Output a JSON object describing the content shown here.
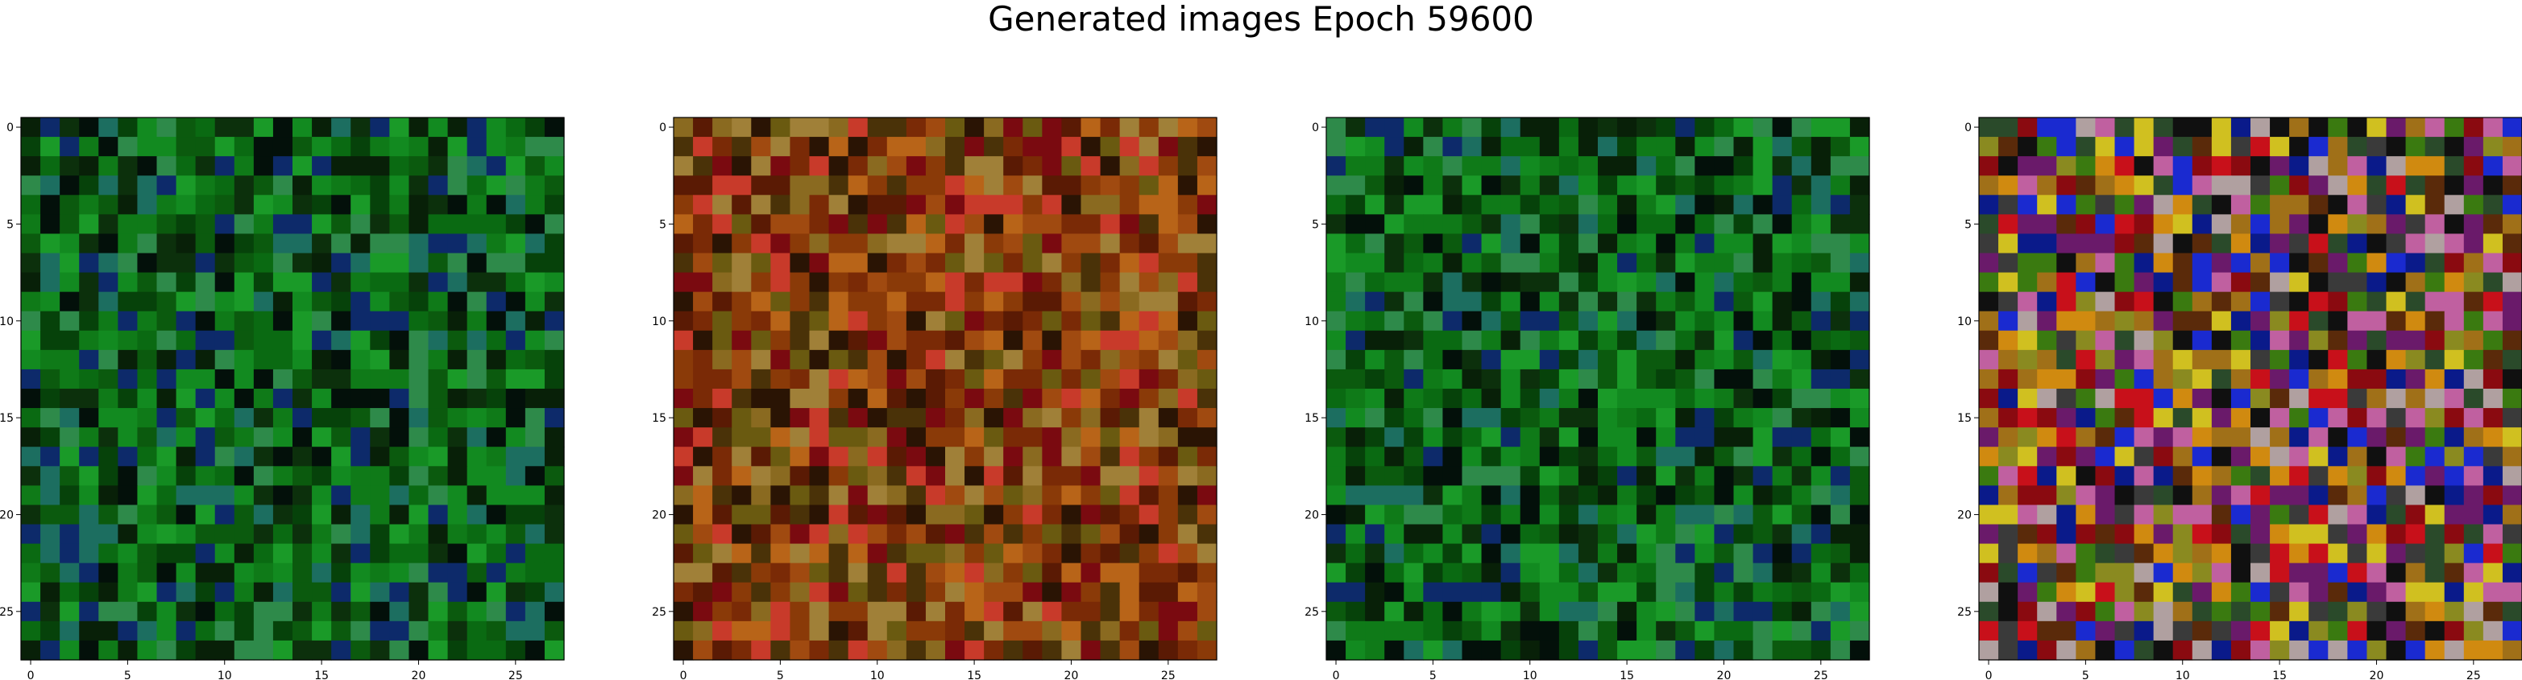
{
  "figure": {
    "title": "Generated images Epoch 59600"
  },
  "chart_data": [
    {
      "type": "heatmap",
      "title": "",
      "grid_size": 28,
      "palette": "green",
      "xticks": [
        0,
        5,
        10,
        15,
        20,
        25
      ],
      "yticks": [
        0,
        5,
        10,
        15,
        20,
        25
      ],
      "xlim": [
        -0.5,
        27.5
      ],
      "ylim": [
        27.5,
        -0.5
      ],
      "grid": false
    },
    {
      "type": "heatmap",
      "title": "",
      "grid_size": 28,
      "palette": "orange-brown",
      "xticks": [
        0,
        5,
        10,
        15,
        20,
        25
      ],
      "yticks": [
        0,
        5,
        10,
        15,
        20,
        25
      ],
      "xlim": [
        -0.5,
        27.5
      ],
      "ylim": [
        27.5,
        -0.5
      ],
      "grid": false
    },
    {
      "type": "heatmap",
      "title": "",
      "grid_size": 28,
      "palette": "green",
      "xticks": [
        0,
        5,
        10,
        15,
        20,
        25
      ],
      "yticks": [
        0,
        5,
        10,
        15,
        20,
        25
      ],
      "xlim": [
        -0.5,
        27.5
      ],
      "ylim": [
        27.5,
        -0.5
      ],
      "grid": false
    },
    {
      "type": "heatmap",
      "title": "",
      "grid_size": 28,
      "palette": "multicolor",
      "xticks": [
        0,
        5,
        10,
        15,
        20,
        25
      ],
      "yticks": [
        0,
        5,
        10,
        15,
        20,
        25
      ],
      "xlim": [
        -0.5,
        27.5
      ],
      "ylim": [
        27.5,
        -0.5
      ],
      "grid": false
    }
  ],
  "colors": {
    "green": [
      "#0a6a12",
      "#0f7a18",
      "#0b5a0e",
      "#06420a",
      "#128a20",
      "#1a9a28",
      "#0c300c",
      "#082008",
      "#03100a",
      "#2e8a4a",
      "#1c6e60",
      "#0d2a6a"
    ],
    "orange-brown": [
      "#8a3a08",
      "#a04a10",
      "#7a2a06",
      "#5a1a04",
      "#b86418",
      "#6a5a10",
      "#4a3208",
      "#2a1404",
      "#8a6a20",
      "#a08038",
      "#7a0a10",
      "#c83a2a"
    ],
    "multicolor": [
      "#0a1a8a",
      "#1a2ad0",
      "#8a0a10",
      "#c8101a",
      "#d08a10",
      "#a07018",
      "#3a7a10",
      "#6a1a6a",
      "#c060a0",
      "#3a3a3a",
      "#101010",
      "#b0a0a0",
      "#d0c020",
      "#2a4a2a",
      "#5a2a0a",
      "#8a8a20"
    ]
  }
}
